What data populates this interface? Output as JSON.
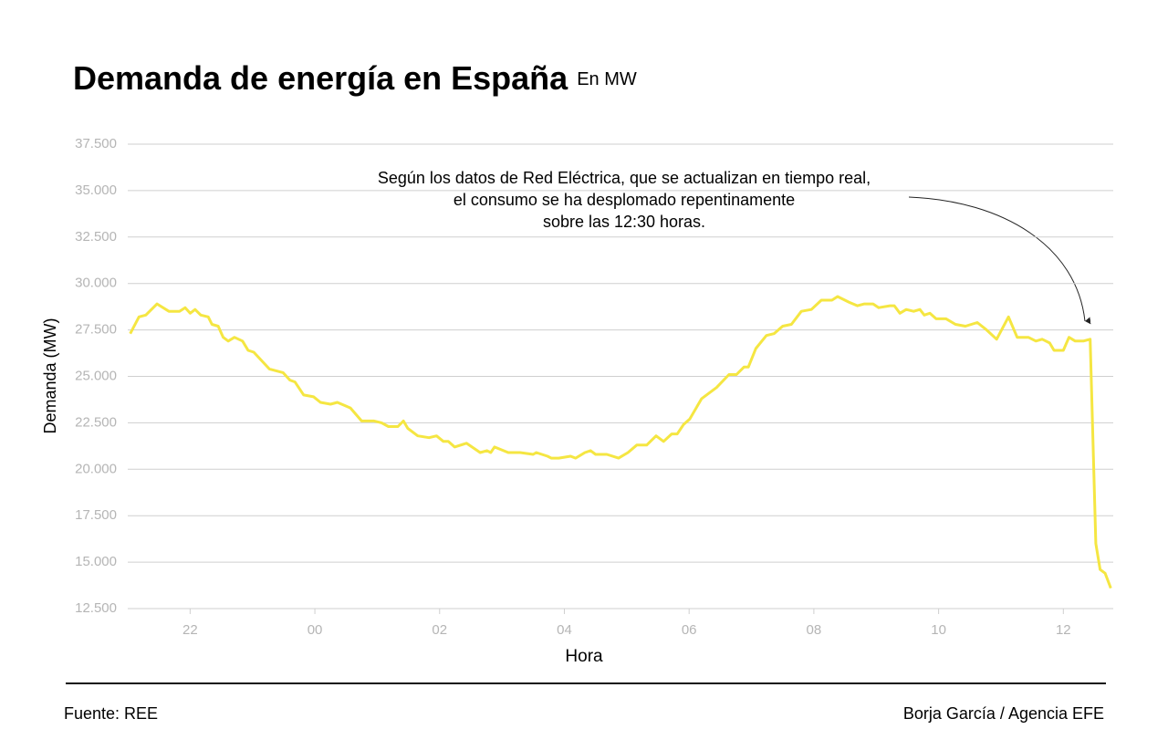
{
  "chart_data": {
    "type": "line",
    "title": "Demanda de energía en España",
    "subtitle": "En MW",
    "x_label": "Hora",
    "y_label": "Demanda (MW)",
    "annotation": [
      "Según los datos de Red Eléctrica, que se actualizan en tiempo real,",
      "el consumo se ha desplomado repentinamente",
      "sobre las 12:30 horas."
    ],
    "source": "Fuente: REE",
    "credit": "Borja García / Agencia EFE",
    "xlim": [
      21,
      36.8
    ],
    "ylim": [
      12500,
      37500
    ],
    "xticks": [
      22,
      {
        "value": 24,
        "label": "00"
      },
      {
        "value": 26,
        "label": "02"
      },
      {
        "value": 28,
        "label": "04"
      },
      {
        "value": 30,
        "label": "06"
      },
      {
        "value": 32,
        "label": "08"
      },
      {
        "value": 34,
        "label": "10"
      },
      {
        "value": 36,
        "label": "12"
      }
    ],
    "yticks": [
      {
        "value": 12500,
        "label": "12.500"
      },
      {
        "value": 15000,
        "label": "15.000"
      },
      {
        "value": 17500,
        "label": "17.500"
      },
      {
        "value": 20000,
        "label": "20.000"
      },
      {
        "value": 22500,
        "label": "22.500"
      },
      {
        "value": 25000,
        "label": "25.000"
      },
      {
        "value": 27500,
        "label": "27.500"
      },
      {
        "value": 30000,
        "label": "30.000"
      },
      {
        "value": 32500,
        "label": "32.500"
      },
      {
        "value": 35000,
        "label": "35.000"
      },
      {
        "value": 37500,
        "label": "37.500"
      }
    ],
    "grid": true,
    "series": [
      {
        "color": "#f5e642",
        "x": [
          21.04,
          21.18,
          21.29,
          21.47,
          21.66,
          21.83,
          21.92,
          22.0,
          22.08,
          22.17,
          22.29,
          22.35,
          22.45,
          22.53,
          22.61,
          22.71,
          22.84,
          22.93,
          23.02,
          23.27,
          23.49,
          23.6,
          23.68,
          23.82,
          23.98,
          24.09,
          24.25,
          24.36,
          24.57,
          24.75,
          24.95,
          25.07,
          25.18,
          25.33,
          25.42,
          25.49,
          25.65,
          25.83,
          25.95,
          26.06,
          26.14,
          26.24,
          26.43,
          26.65,
          26.76,
          26.82,
          26.88,
          27.1,
          27.29,
          27.5,
          27.55,
          27.73,
          27.79,
          27.91,
          28.1,
          28.18,
          28.33,
          28.42,
          28.5,
          28.68,
          28.87,
          29.02,
          29.16,
          29.32,
          29.47,
          29.59,
          29.72,
          29.81,
          29.91,
          30.01,
          30.2,
          30.32,
          30.44,
          30.64,
          30.76,
          30.88,
          30.95,
          31.07,
          31.24,
          31.36,
          31.5,
          31.64,
          31.8,
          31.96,
          32.12,
          32.29,
          32.38,
          32.56,
          32.7,
          32.81,
          32.95,
          33.04,
          33.22,
          33.29,
          33.38,
          33.48,
          33.6,
          33.7,
          33.77,
          33.86,
          33.96,
          34.12,
          34.27,
          34.43,
          34.62,
          34.77,
          34.93,
          35.12,
          35.26,
          35.44,
          35.56,
          35.66,
          35.78,
          35.85,
          36.0,
          36.09,
          36.19,
          36.32,
          36.43,
          36.52,
          36.59,
          36.67,
          36.76
        ],
        "values": [
          27300,
          28200,
          28300,
          28900,
          28500,
          28500,
          28700,
          28400,
          28600,
          28300,
          28200,
          27800,
          27700,
          27100,
          26900,
          27100,
          26900,
          26400,
          26300,
          25400,
          25200,
          24800,
          24700,
          24000,
          23900,
          23600,
          23500,
          23600,
          23300,
          22600,
          22600,
          22500,
          22300,
          22300,
          22600,
          22200,
          21800,
          21700,
          21800,
          21500,
          21500,
          21200,
          21400,
          20900,
          21000,
          20900,
          21200,
          20900,
          20900,
          20800,
          20900,
          20700,
          20600,
          20600,
          20700,
          20600,
          20900,
          21000,
          20800,
          20800,
          20600,
          20900,
          21300,
          21300,
          21800,
          21500,
          21900,
          21900,
          22400,
          22700,
          23800,
          24100,
          24400,
          25100,
          25100,
          25500,
          25500,
          26500,
          27200,
          27300,
          27700,
          27800,
          28500,
          28600,
          29100,
          29100,
          29300,
          29000,
          28800,
          28900,
          28900,
          28700,
          28800,
          28800,
          28400,
          28600,
          28500,
          28600,
          28300,
          28400,
          28100,
          28100,
          27800,
          27700,
          27900,
          27500,
          27000,
          28200,
          27100,
          27100,
          26900,
          27000,
          26800,
          26400,
          26400,
          27100,
          26900,
          26900,
          27000,
          16000,
          14600,
          14400,
          13600
        ]
      }
    ]
  }
}
